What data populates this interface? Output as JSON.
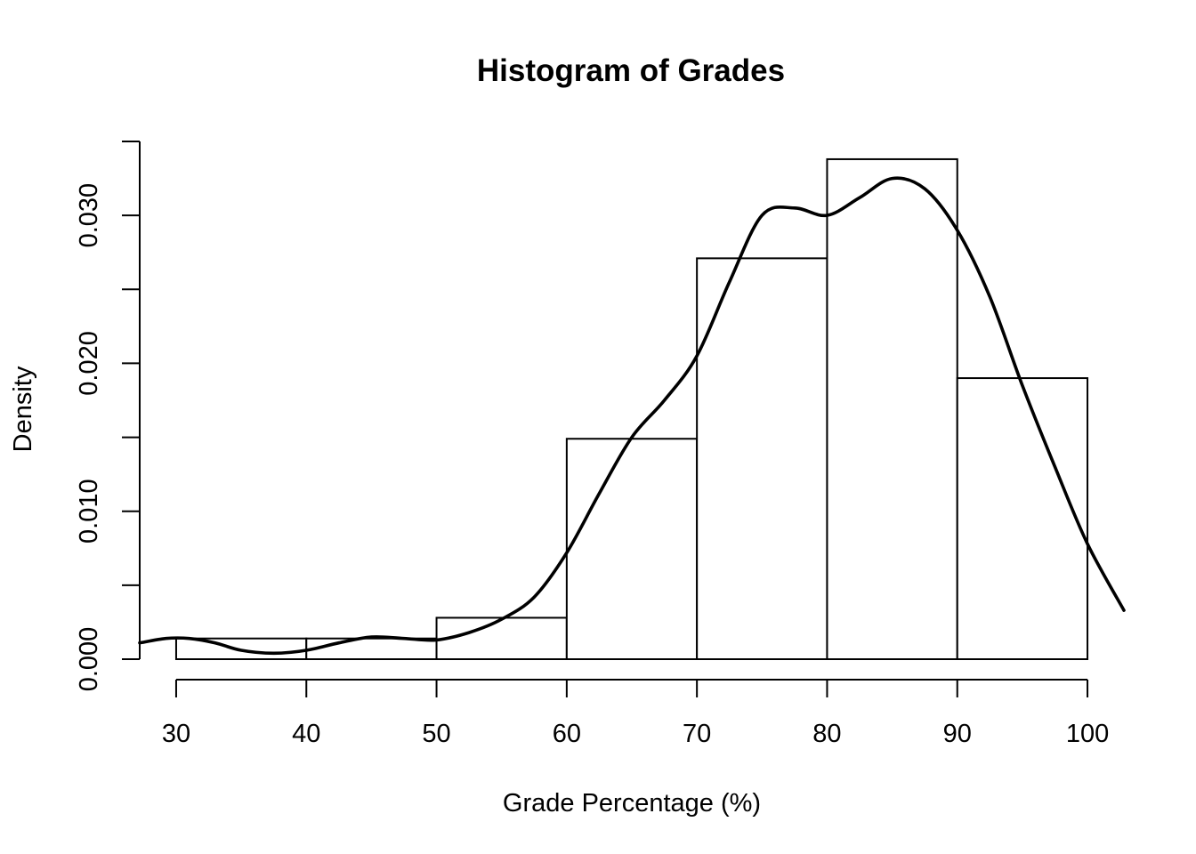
{
  "chart_data": {
    "type": "bar",
    "title": "Histogram of Grades",
    "xlabel": "Grade Percentage (%)",
    "ylabel": "Density",
    "x_ticks": [
      "30",
      "40",
      "50",
      "60",
      "70",
      "80",
      "90",
      "100"
    ],
    "y_ticks": [
      "0.000",
      "0.010",
      "0.020",
      "0.030"
    ],
    "y_minor_ticks": [
      0.005,
      0.015,
      0.025,
      0.035
    ],
    "xlim": [
      27.2,
      102.8
    ],
    "ylim": [
      0,
      0.035
    ],
    "bins": [
      {
        "from": 30,
        "to": 40,
        "density": 0.0014
      },
      {
        "from": 40,
        "to": 50,
        "density": 0.0014
      },
      {
        "from": 50,
        "to": 60,
        "density": 0.0028
      },
      {
        "from": 60,
        "to": 70,
        "density": 0.0149
      },
      {
        "from": 70,
        "to": 80,
        "density": 0.0271
      },
      {
        "from": 80,
        "to": 90,
        "density": 0.0338
      },
      {
        "from": 90,
        "to": 100,
        "density": 0.019
      }
    ],
    "density_curve": {
      "x": [
        27.2,
        29.2,
        31.0,
        33.0,
        35.0,
        37.5,
        40.0,
        42.5,
        45.0,
        47.5,
        50.0,
        52.5,
        55.0,
        57.5,
        60.0,
        62.5,
        65.0,
        67.5,
        70.0,
        72.5,
        75.0,
        77.5,
        80.0,
        82.5,
        85.0,
        87.5,
        90.0,
        92.5,
        95.0,
        97.5,
        100.0,
        102.8
      ],
      "y": [
        0.0011,
        0.0014,
        0.0014,
        0.0011,
        0.0006,
        0.0004,
        0.0006,
        0.0011,
        0.0015,
        0.0014,
        0.0013,
        0.0018,
        0.0027,
        0.0042,
        0.0072,
        0.0112,
        0.015,
        0.0175,
        0.0205,
        0.0255,
        0.03,
        0.0305,
        0.03,
        0.0312,
        0.0325,
        0.0318,
        0.029,
        0.0245,
        0.0185,
        0.013,
        0.0078,
        0.0033
      ]
    }
  }
}
